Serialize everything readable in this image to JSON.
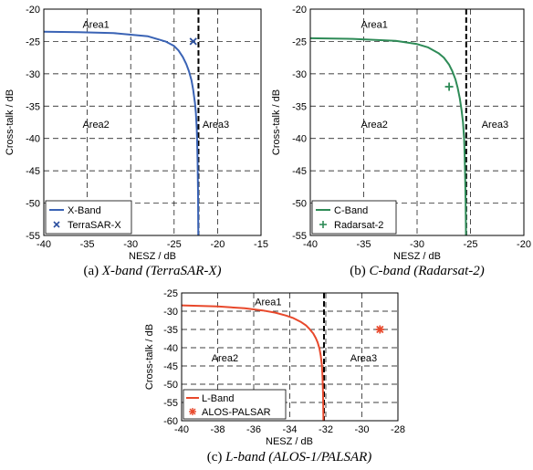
{
  "chart_data": [
    {
      "type": "line",
      "caption_prefix": "(a) ",
      "caption_title": "X-band (TerraSAR-X)",
      "xlabel": "NESZ / dB",
      "ylabel": "Cross-talk / dB",
      "xlim": [
        -40,
        -15
      ],
      "ylim": [
        -55,
        -20
      ],
      "xticks": [
        -40,
        -35,
        -30,
        -25,
        -20,
        -15
      ],
      "yticks": [
        -20,
        -25,
        -30,
        -35,
        -40,
        -45,
        -50,
        -55
      ],
      "grid": true,
      "legend_position": "bottom-left",
      "threshold_x": -22.2,
      "areas": [
        {
          "label": "Area1",
          "x": -34,
          "y": -22.3
        },
        {
          "label": "Area2",
          "x": -34,
          "y": -37.8
        },
        {
          "label": "Area3",
          "x": -20.2,
          "y": -37.8
        }
      ],
      "series": [
        {
          "name": "X-Band",
          "kind": "line",
          "color": "#3a63b5",
          "x": [
            -40,
            -36,
            -32,
            -28,
            -26,
            -25,
            -24.5,
            -24,
            -23.6,
            -23.3,
            -23.0,
            -22.8,
            -22.6,
            -22.5,
            -22.4,
            -22.35,
            -22.3,
            -22.25,
            -22.22
          ],
          "y": [
            -23.5,
            -23.55,
            -23.7,
            -24.2,
            -25.0,
            -25.7,
            -26.4,
            -27.4,
            -28.5,
            -29.6,
            -31.0,
            -32.5,
            -34.5,
            -36.0,
            -38.5,
            -40.5,
            -43.5,
            -48.5,
            -55
          ]
        },
        {
          "name": "TerraSAR-X",
          "kind": "marker",
          "marker": "x",
          "color": "#2b4f9e",
          "x": [
            -22.8
          ],
          "y": [
            -25
          ]
        }
      ]
    },
    {
      "type": "line",
      "caption_prefix": "(b) ",
      "caption_title": "C-band (Radarsat-2)",
      "xlabel": "NESZ / dB",
      "ylabel": "Cross-talk / dB",
      "xlim": [
        -40,
        -20
      ],
      "ylim": [
        -55,
        -20
      ],
      "xticks": [
        -40,
        -35,
        -30,
        -25,
        -20
      ],
      "yticks": [
        -20,
        -25,
        -30,
        -35,
        -40,
        -45,
        -50,
        -55
      ],
      "grid": true,
      "legend_position": "bottom-left",
      "threshold_x": -25.4,
      "areas": [
        {
          "label": "Area1",
          "x": -34,
          "y": -22.3
        },
        {
          "label": "Area2",
          "x": -34,
          "y": -37.8
        },
        {
          "label": "Area3",
          "x": -22.7,
          "y": -37.8
        }
      ],
      "series": [
        {
          "name": "C-Band",
          "kind": "line",
          "color": "#2e8b57",
          "x": [
            -40,
            -36,
            -32,
            -30,
            -29,
            -28,
            -27.5,
            -27,
            -26.7,
            -26.4,
            -26.2,
            -26.0,
            -25.85,
            -25.7,
            -25.6,
            -25.55,
            -25.5,
            -25.45,
            -25.42
          ],
          "y": [
            -24.5,
            -24.6,
            -24.9,
            -25.4,
            -25.9,
            -26.8,
            -27.5,
            -28.6,
            -29.6,
            -30.9,
            -32.2,
            -33.8,
            -35.5,
            -37.5,
            -40.0,
            -42.5,
            -45.5,
            -50.0,
            -55
          ]
        },
        {
          "name": "Radarsat-2",
          "kind": "marker",
          "marker": "+",
          "color": "#2e8b57",
          "x": [
            -27
          ],
          "y": [
            -32
          ]
        }
      ]
    },
    {
      "type": "line",
      "caption_prefix": "(c) ",
      "caption_title": "L-band (ALOS-1/PALSAR)",
      "xlabel": "NESZ / dB",
      "ylabel": "Cross-talk / dB",
      "xlim": [
        -40,
        -28
      ],
      "ylim": [
        -60,
        -25
      ],
      "xticks": [
        -40,
        -38,
        -36,
        -34,
        -32,
        -30,
        -28
      ],
      "yticks": [
        -25,
        -30,
        -35,
        -40,
        -45,
        -50,
        -55,
        -60
      ],
      "grid": true,
      "legend_position": "bottom-left",
      "threshold_x": -32.1,
      "areas": [
        {
          "label": "Area1",
          "x": -35.2,
          "y": -27.4
        },
        {
          "label": "Area2",
          "x": -37.6,
          "y": -42.8
        },
        {
          "label": "Area3",
          "x": -29.9,
          "y": -42.8
        }
      ],
      "series": [
        {
          "name": "L-Band",
          "kind": "line",
          "color": "#e8482b",
          "x": [
            -40,
            -38,
            -36.5,
            -35.5,
            -34.8,
            -34.2,
            -33.8,
            -33.4,
            -33.1,
            -32.9,
            -32.7,
            -32.55,
            -32.45,
            -32.35,
            -32.28,
            -32.22,
            -32.18,
            -32.15,
            -32.13
          ],
          "y": [
            -28.4,
            -28.7,
            -29.2,
            -29.8,
            -30.4,
            -31.2,
            -31.9,
            -32.9,
            -33.9,
            -34.9,
            -36.1,
            -37.4,
            -38.6,
            -40.3,
            -42.3,
            -44.8,
            -48.0,
            -53.0,
            -60
          ]
        },
        {
          "name": "ALOS-PALSAR",
          "kind": "marker",
          "marker": "*",
          "color": "#e8482b",
          "x": [
            -29
          ],
          "y": [
            -35
          ]
        }
      ]
    }
  ]
}
